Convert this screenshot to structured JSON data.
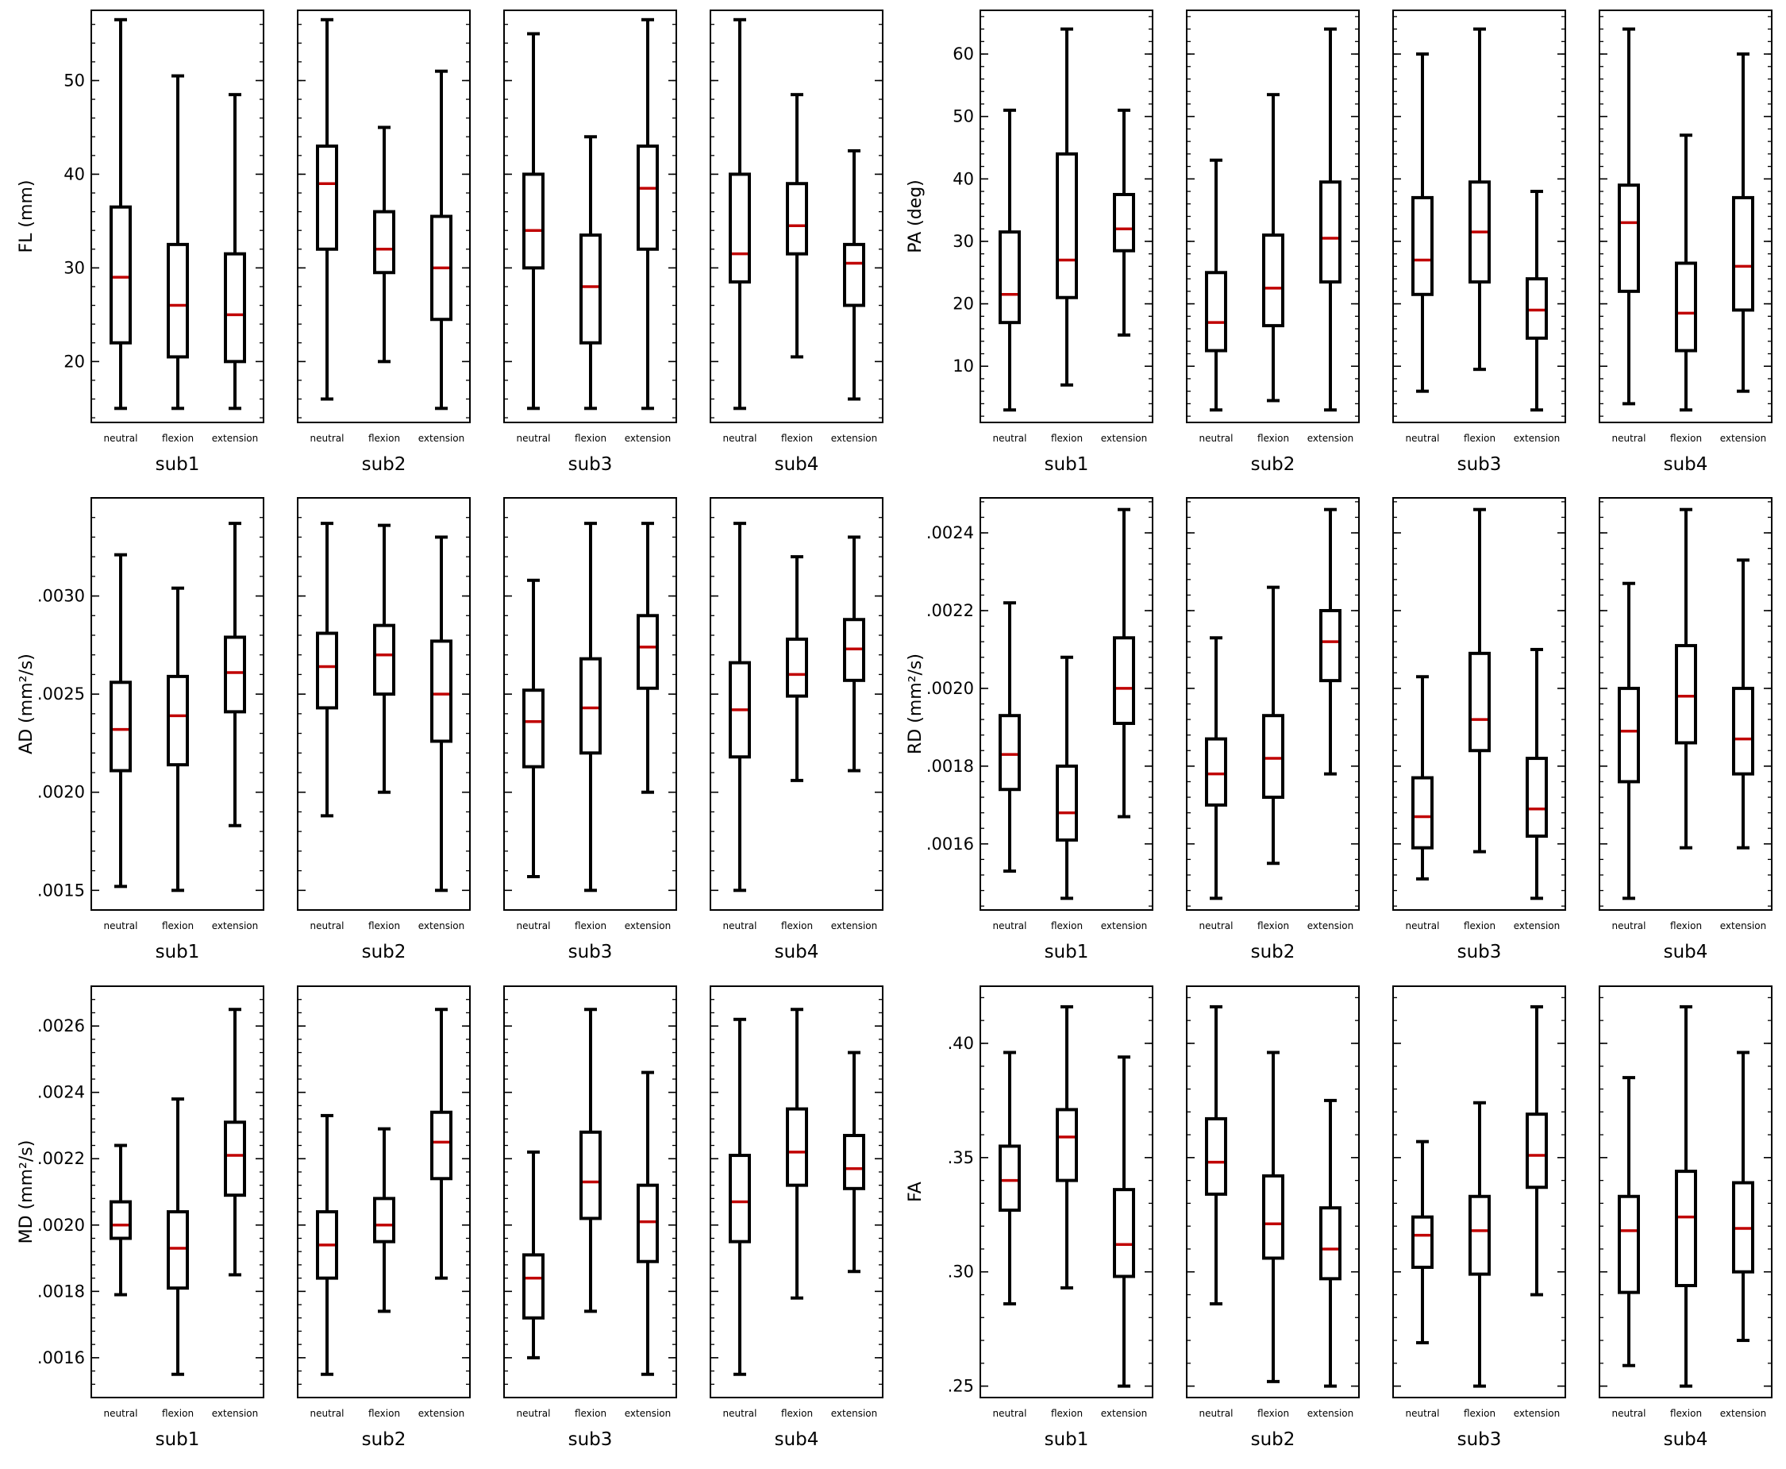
{
  "chart_data": [
    {
      "type": "boxplot",
      "ylabel": "FL (mm)",
      "ylim": [
        13.5,
        57.5
      ],
      "yticks": [
        20,
        30,
        40,
        50
      ],
      "ytick_labels": [
        "20",
        "30",
        "40",
        "50"
      ],
      "categories": [
        "neutral",
        "flexion",
        "extension"
      ],
      "subjects": [
        {
          "name": "sub1",
          "boxes": [
            {
              "min": 15,
              "q1": 22,
              "median": 29,
              "q3": 36.5,
              "max": 56.5
            },
            {
              "min": 15,
              "q1": 20.5,
              "median": 26,
              "q3": 32.5,
              "max": 50.5
            },
            {
              "min": 15,
              "q1": 20,
              "median": 25,
              "q3": 31.5,
              "max": 48.5
            }
          ]
        },
        {
          "name": "sub2",
          "boxes": [
            {
              "min": 16,
              "q1": 32,
              "median": 39,
              "q3": 43,
              "max": 56.5
            },
            {
              "min": 20,
              "q1": 29.5,
              "median": 32,
              "q3": 36,
              "max": 45
            },
            {
              "min": 15,
              "q1": 24.5,
              "median": 30,
              "q3": 35.5,
              "max": 51
            }
          ]
        },
        {
          "name": "sub3",
          "boxes": [
            {
              "min": 15,
              "q1": 30,
              "median": 34,
              "q3": 40,
              "max": 55
            },
            {
              "min": 15,
              "q1": 22,
              "median": 28,
              "q3": 33.5,
              "max": 44
            },
            {
              "min": 15,
              "q1": 32,
              "median": 38.5,
              "q3": 43,
              "max": 56.5
            }
          ]
        },
        {
          "name": "sub4",
          "boxes": [
            {
              "min": 15,
              "q1": 28.5,
              "median": 31.5,
              "q3": 40,
              "max": 56.5
            },
            {
              "min": 20.5,
              "q1": 31.5,
              "median": 34.5,
              "q3": 39,
              "max": 48.5
            },
            {
              "min": 16,
              "q1": 26,
              "median": 30.5,
              "q3": 32.5,
              "max": 42.5
            }
          ]
        }
      ]
    },
    {
      "type": "boxplot",
      "ylabel": "PA (deg)",
      "ylim": [
        1,
        67
      ],
      "yticks": [
        10,
        20,
        30,
        40,
        50,
        60
      ],
      "ytick_labels": [
        "10",
        "20",
        "30",
        "40",
        "50",
        "60"
      ],
      "categories": [
        "neutral",
        "flexion",
        "extension"
      ],
      "subjects": [
        {
          "name": "sub1",
          "boxes": [
            {
              "min": 3,
              "q1": 17,
              "median": 21.5,
              "q3": 31.5,
              "max": 51
            },
            {
              "min": 7,
              "q1": 21,
              "median": 27,
              "q3": 44,
              "max": 64
            },
            {
              "min": 15,
              "q1": 28.5,
              "median": 32,
              "q3": 37.5,
              "max": 51
            }
          ]
        },
        {
          "name": "sub2",
          "boxes": [
            {
              "min": 3,
              "q1": 12.5,
              "median": 17,
              "q3": 25,
              "max": 43
            },
            {
              "min": 4.5,
              "q1": 16.5,
              "median": 22.5,
              "q3": 31,
              "max": 53.5
            },
            {
              "min": 3,
              "q1": 23.5,
              "median": 30.5,
              "q3": 39.5,
              "max": 64
            }
          ]
        },
        {
          "name": "sub3",
          "boxes": [
            {
              "min": 6,
              "q1": 21.5,
              "median": 27,
              "q3": 37,
              "max": 60
            },
            {
              "min": 9.5,
              "q1": 23.5,
              "median": 31.5,
              "q3": 39.5,
              "max": 64
            },
            {
              "min": 3,
              "q1": 14.5,
              "median": 19,
              "q3": 24,
              "max": 38
            }
          ]
        },
        {
          "name": "sub4",
          "boxes": [
            {
              "min": 4,
              "q1": 22,
              "median": 33,
              "q3": 39,
              "max": 64
            },
            {
              "min": 3,
              "q1": 12.5,
              "median": 18.5,
              "q3": 26.5,
              "max": 47
            },
            {
              "min": 6,
              "q1": 19,
              "median": 26,
              "q3": 37,
              "max": 60
            }
          ]
        }
      ]
    },
    {
      "type": "boxplot",
      "ylabel": "AD (mm²/s)",
      "ylim": [
        0.0014,
        0.0035
      ],
      "yticks": [
        0.0015,
        0.002,
        0.0025,
        0.003
      ],
      "ytick_labels": [
        ".0015",
        ".0020",
        ".0025",
        ".0030"
      ],
      "categories": [
        "neutral",
        "flexion",
        "extension"
      ],
      "subjects": [
        {
          "name": "sub1",
          "boxes": [
            {
              "min": 0.00152,
              "q1": 0.00211,
              "median": 0.00232,
              "q3": 0.00256,
              "max": 0.00321
            },
            {
              "min": 0.0015,
              "q1": 0.00214,
              "median": 0.00239,
              "q3": 0.00259,
              "max": 0.00304
            },
            {
              "min": 0.00183,
              "q1": 0.00241,
              "median": 0.00261,
              "q3": 0.00279,
              "max": 0.00337
            }
          ]
        },
        {
          "name": "sub2",
          "boxes": [
            {
              "min": 0.00188,
              "q1": 0.00243,
              "median": 0.00264,
              "q3": 0.00281,
              "max": 0.00337
            },
            {
              "min": 0.002,
              "q1": 0.0025,
              "median": 0.0027,
              "q3": 0.00285,
              "max": 0.00336
            },
            {
              "min": 0.0015,
              "q1": 0.00226,
              "median": 0.0025,
              "q3": 0.00277,
              "max": 0.0033
            }
          ]
        },
        {
          "name": "sub3",
          "boxes": [
            {
              "min": 0.00157,
              "q1": 0.00213,
              "median": 0.00236,
              "q3": 0.00252,
              "max": 0.00308
            },
            {
              "min": 0.0015,
              "q1": 0.0022,
              "median": 0.00243,
              "q3": 0.00268,
              "max": 0.00337
            },
            {
              "min": 0.002,
              "q1": 0.00253,
              "median": 0.00274,
              "q3": 0.0029,
              "max": 0.00337
            }
          ]
        },
        {
          "name": "sub4",
          "boxes": [
            {
              "min": 0.0015,
              "q1": 0.00218,
              "median": 0.00242,
              "q3": 0.00266,
              "max": 0.00337
            },
            {
              "min": 0.00206,
              "q1": 0.00249,
              "median": 0.0026,
              "q3": 0.00278,
              "max": 0.0032
            },
            {
              "min": 0.00211,
              "q1": 0.00257,
              "median": 0.00273,
              "q3": 0.00288,
              "max": 0.0033
            }
          ]
        }
      ]
    },
    {
      "type": "boxplot",
      "ylabel": "RD (mm²/s)",
      "ylim": [
        0.00143,
        0.00249
      ],
      "yticks": [
        0.0016,
        0.0018,
        0.002,
        0.0022,
        0.0024
      ],
      "ytick_labels": [
        ".0016",
        ".0018",
        ".0020",
        ".0022",
        ".0024"
      ],
      "categories": [
        "neutral",
        "flexion",
        "extension"
      ],
      "subjects": [
        {
          "name": "sub1",
          "boxes": [
            {
              "min": 0.00153,
              "q1": 0.00174,
              "median": 0.00183,
              "q3": 0.00193,
              "max": 0.00222
            },
            {
              "min": 0.00146,
              "q1": 0.00161,
              "median": 0.00168,
              "q3": 0.0018,
              "max": 0.00208
            },
            {
              "min": 0.00167,
              "q1": 0.00191,
              "median": 0.002,
              "q3": 0.00213,
              "max": 0.00246
            }
          ]
        },
        {
          "name": "sub2",
          "boxes": [
            {
              "min": 0.00146,
              "q1": 0.0017,
              "median": 0.00178,
              "q3": 0.00187,
              "max": 0.00213
            },
            {
              "min": 0.00155,
              "q1": 0.00172,
              "median": 0.00182,
              "q3": 0.00193,
              "max": 0.00226
            },
            {
              "min": 0.00178,
              "q1": 0.00202,
              "median": 0.00212,
              "q3": 0.0022,
              "max": 0.00246
            }
          ]
        },
        {
          "name": "sub3",
          "boxes": [
            {
              "min": 0.00151,
              "q1": 0.00159,
              "median": 0.00167,
              "q3": 0.00177,
              "max": 0.00203
            },
            {
              "min": 0.00158,
              "q1": 0.00184,
              "median": 0.00192,
              "q3": 0.00209,
              "max": 0.00246
            },
            {
              "min": 0.00146,
              "q1": 0.00162,
              "median": 0.00169,
              "q3": 0.00182,
              "max": 0.0021
            }
          ]
        },
        {
          "name": "sub4",
          "boxes": [
            {
              "min": 0.00146,
              "q1": 0.00176,
              "median": 0.00189,
              "q3": 0.002,
              "max": 0.00227
            },
            {
              "min": 0.00159,
              "q1": 0.00186,
              "median": 0.00198,
              "q3": 0.00211,
              "max": 0.00246
            },
            {
              "min": 0.00159,
              "q1": 0.00178,
              "median": 0.00187,
              "q3": 0.002,
              "max": 0.00233
            }
          ]
        }
      ]
    },
    {
      "type": "boxplot",
      "ylabel": "MD (mm²/s)",
      "ylim": [
        0.00148,
        0.00272
      ],
      "yticks": [
        0.0016,
        0.0018,
        0.002,
        0.0022,
        0.0024,
        0.0026
      ],
      "ytick_labels": [
        ".0016",
        ".0018",
        ".0020",
        ".0022",
        ".0024",
        ".0026"
      ],
      "categories": [
        "neutral",
        "flexion",
        "extension"
      ],
      "subjects": [
        {
          "name": "sub1",
          "boxes": [
            {
              "min": 0.00179,
              "q1": 0.00196,
              "median": 0.002,
              "q3": 0.00207,
              "max": 0.00224
            },
            {
              "min": 0.00155,
              "q1": 0.00181,
              "median": 0.00193,
              "q3": 0.00204,
              "max": 0.00238
            },
            {
              "min": 0.00185,
              "q1": 0.00209,
              "median": 0.00221,
              "q3": 0.00231,
              "max": 0.00265
            }
          ]
        },
        {
          "name": "sub2",
          "boxes": [
            {
              "min": 0.00155,
              "q1": 0.00184,
              "median": 0.00194,
              "q3": 0.00204,
              "max": 0.00233
            },
            {
              "min": 0.00174,
              "q1": 0.00195,
              "median": 0.002,
              "q3": 0.00208,
              "max": 0.00229
            },
            {
              "min": 0.00184,
              "q1": 0.00214,
              "median": 0.00225,
              "q3": 0.00234,
              "max": 0.00265
            }
          ]
        },
        {
          "name": "sub3",
          "boxes": [
            {
              "min": 0.0016,
              "q1": 0.00172,
              "median": 0.00184,
              "q3": 0.00191,
              "max": 0.00222
            },
            {
              "min": 0.00174,
              "q1": 0.00202,
              "median": 0.00213,
              "q3": 0.00228,
              "max": 0.00265
            },
            {
              "min": 0.00155,
              "q1": 0.00189,
              "median": 0.00201,
              "q3": 0.00212,
              "max": 0.00246
            }
          ]
        },
        {
          "name": "sub4",
          "boxes": [
            {
              "min": 0.00155,
              "q1": 0.00195,
              "median": 0.00207,
              "q3": 0.00221,
              "max": 0.00262
            },
            {
              "min": 0.00178,
              "q1": 0.00212,
              "median": 0.00222,
              "q3": 0.00235,
              "max": 0.00265
            },
            {
              "min": 0.00186,
              "q1": 0.00211,
              "median": 0.00217,
              "q3": 0.00227,
              "max": 0.00252
            }
          ]
        }
      ]
    },
    {
      "type": "boxplot",
      "ylabel": "FA",
      "ylim": [
        0.245,
        0.425
      ],
      "yticks": [
        0.25,
        0.3,
        0.35,
        0.4
      ],
      "ytick_labels": [
        ".25",
        ".30",
        ".35",
        ".40"
      ],
      "categories": [
        "neutral",
        "flexion",
        "extension"
      ],
      "subjects": [
        {
          "name": "sub1",
          "boxes": [
            {
              "min": 0.286,
              "q1": 0.327,
              "median": 0.34,
              "q3": 0.355,
              "max": 0.396
            },
            {
              "min": 0.293,
              "q1": 0.34,
              "median": 0.359,
              "q3": 0.371,
              "max": 0.416
            },
            {
              "min": 0.25,
              "q1": 0.298,
              "median": 0.312,
              "q3": 0.336,
              "max": 0.394
            }
          ]
        },
        {
          "name": "sub2",
          "boxes": [
            {
              "min": 0.286,
              "q1": 0.334,
              "median": 0.348,
              "q3": 0.367,
              "max": 0.416
            },
            {
              "min": 0.252,
              "q1": 0.306,
              "median": 0.321,
              "q3": 0.342,
              "max": 0.396
            },
            {
              "min": 0.25,
              "q1": 0.297,
              "median": 0.31,
              "q3": 0.328,
              "max": 0.375
            }
          ]
        },
        {
          "name": "sub3",
          "boxes": [
            {
              "min": 0.269,
              "q1": 0.302,
              "median": 0.316,
              "q3": 0.324,
              "max": 0.357
            },
            {
              "min": 0.25,
              "q1": 0.299,
              "median": 0.318,
              "q3": 0.333,
              "max": 0.374
            },
            {
              "min": 0.29,
              "q1": 0.337,
              "median": 0.351,
              "q3": 0.369,
              "max": 0.416
            }
          ]
        },
        {
          "name": "sub4",
          "boxes": [
            {
              "min": 0.259,
              "q1": 0.291,
              "median": 0.318,
              "q3": 0.333,
              "max": 0.385
            },
            {
              "min": 0.25,
              "q1": 0.294,
              "median": 0.324,
              "q3": 0.344,
              "max": 0.416
            },
            {
              "min": 0.27,
              "q1": 0.3,
              "median": 0.319,
              "q3": 0.339,
              "max": 0.396
            }
          ]
        }
      ]
    }
  ]
}
